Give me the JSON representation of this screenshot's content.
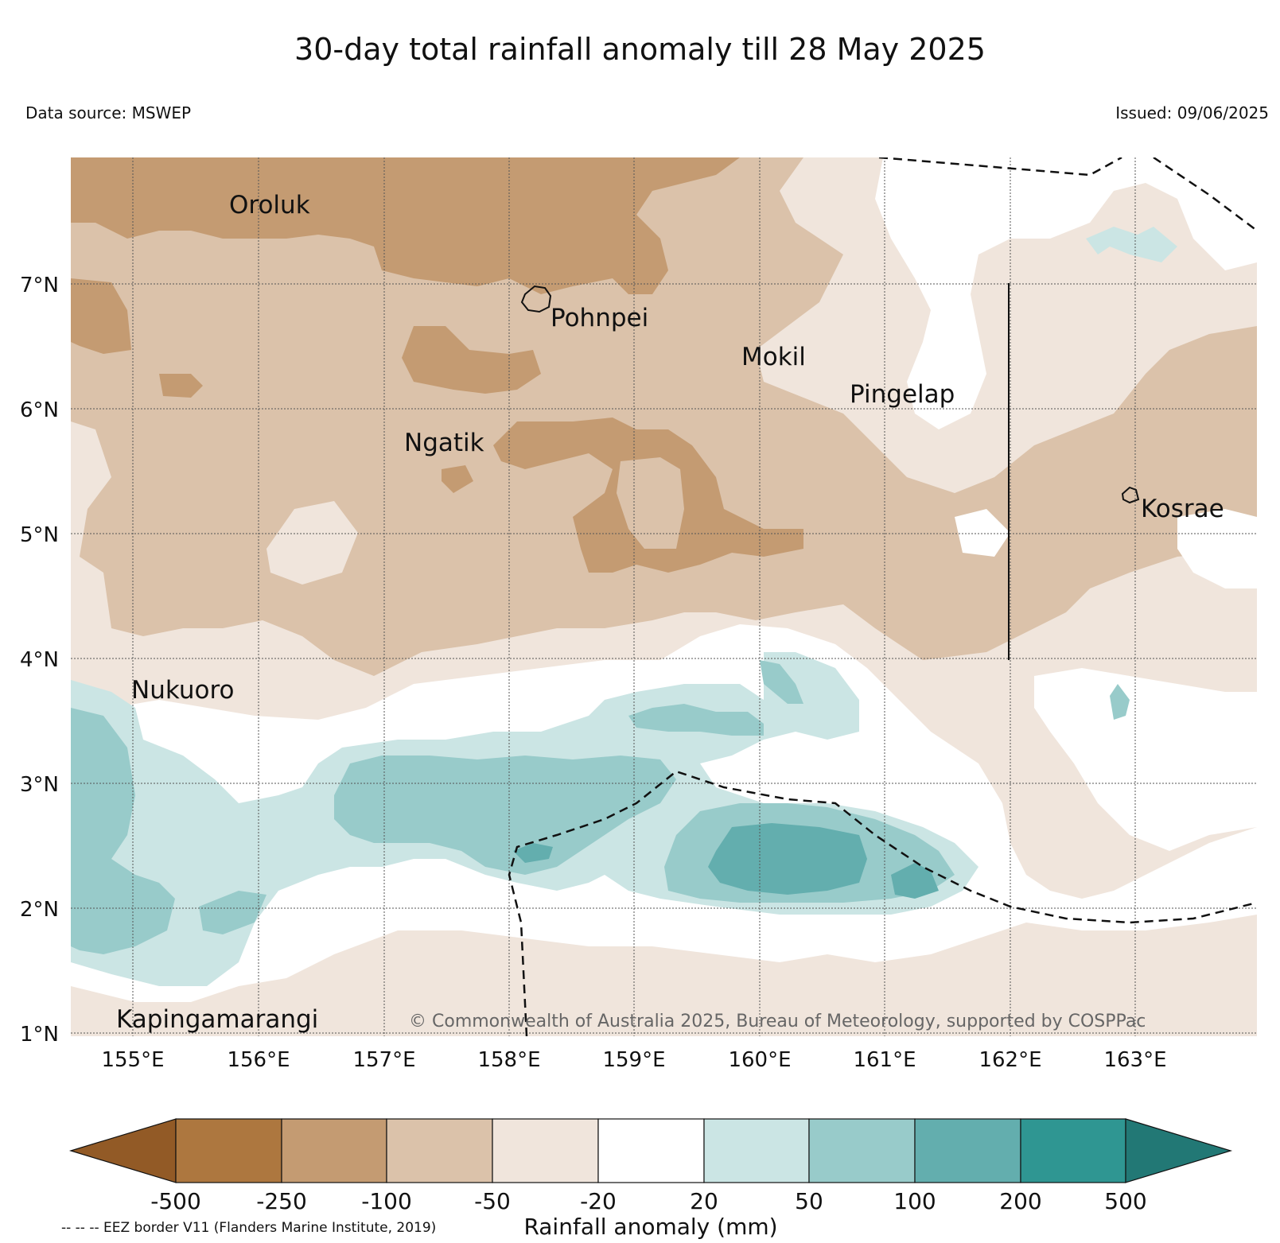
{
  "header": {
    "title": "30-day total rainfall anomaly till 28 May 2025",
    "source": "Data source: MSWEP",
    "issued": "Issued: 09/06/2025"
  },
  "map": {
    "lat_labels": [
      "1°N",
      "2°N",
      "3°N",
      "4°N",
      "5°N",
      "6°N",
      "7°N"
    ],
    "lon_labels": [
      "155°E",
      "156°E",
      "157°E",
      "158°E",
      "159°E",
      "160°E",
      "161°E",
      "162°E",
      "163°E"
    ],
    "places": {
      "oroluk": "Oroluk",
      "pohnpei": "Pohnpei",
      "mokil": "Mokil",
      "pingelap": "Pingelap",
      "ngatik": "Ngatik",
      "kosrae": "Kosrae",
      "nukuoro": "Nukuoro",
      "kapingamarangi": "Kapingamarangi"
    },
    "copyright": "© Commonwealth of Australia 2025, Bureau of Meteorology, supported by COSPPac",
    "colors": {
      "lt_neg500": "#925a26",
      "neg500_neg250": "#ad773f",
      "neg250_neg100": "#c49b72",
      "neg100_neg50": "#dbc2aa",
      "neg50_neg20": "#f0e5dc",
      "neg20_20": "#ffffff",
      "p20_50": "#cbe5e4",
      "p50_100": "#98cbca",
      "p100_200": "#63aeae",
      "p200_500": "#2f9692",
      "gt_500": "#227875"
    }
  },
  "colorbar": {
    "ticks": [
      "-500",
      "-250",
      "-100",
      "-50",
      "-20",
      "20",
      "50",
      "100",
      "200",
      "500"
    ],
    "label": "Rainfall anomaly (mm)"
  },
  "footer": {
    "eez_note": "-- -- -- EEZ border V11 (Flanders Marine Institute, 2019)"
  }
}
